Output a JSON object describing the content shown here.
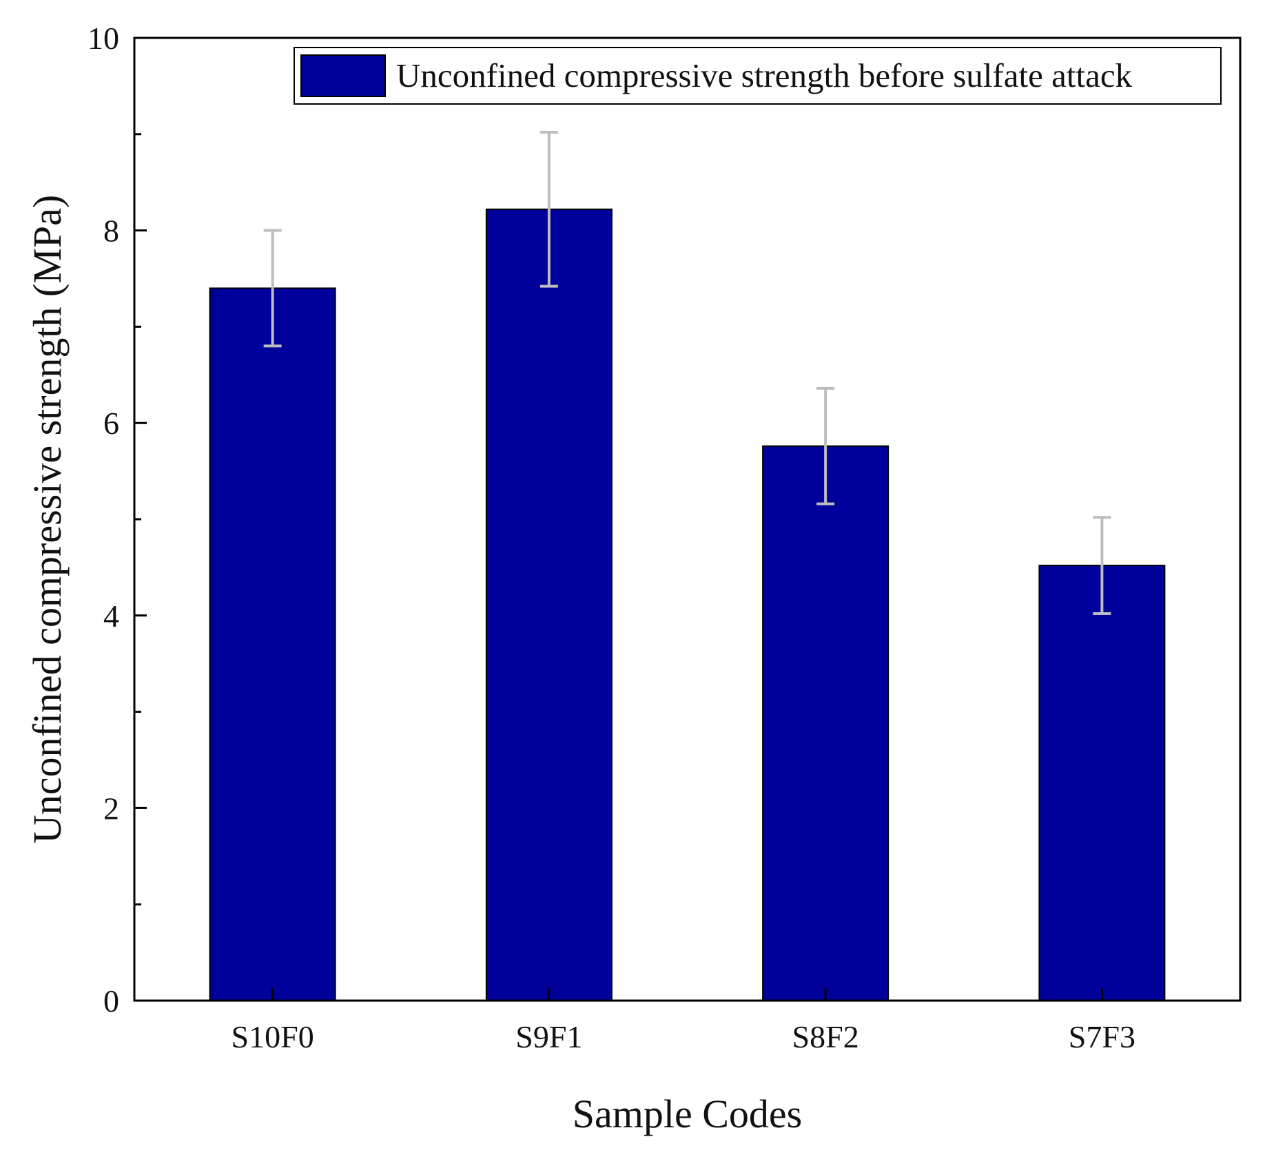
{
  "chart_data": {
    "type": "bar",
    "title": "",
    "xlabel": "Sample Codes",
    "ylabel": "Unconfined compressive strength (MPa)",
    "categories": [
      "S10F0",
      "S9F1",
      "S8F2",
      "S7F3"
    ],
    "series": [
      {
        "name": "Unconfined compressive strength before sulfate attack",
        "values": [
          7.4,
          8.22,
          5.76,
          4.52
        ],
        "error": [
          0.6,
          0.8,
          0.6,
          0.5
        ],
        "color": "#00009b"
      }
    ],
    "ylim": [
      0,
      10
    ],
    "yticks": [
      0,
      2,
      4,
      6,
      8,
      10
    ],
    "ytick_labels": [
      "0",
      "2",
      "4",
      "6",
      "8",
      "10"
    ],
    "grid": false,
    "legend_position": "top-right",
    "error_bar_color": "#bdbdbd"
  }
}
